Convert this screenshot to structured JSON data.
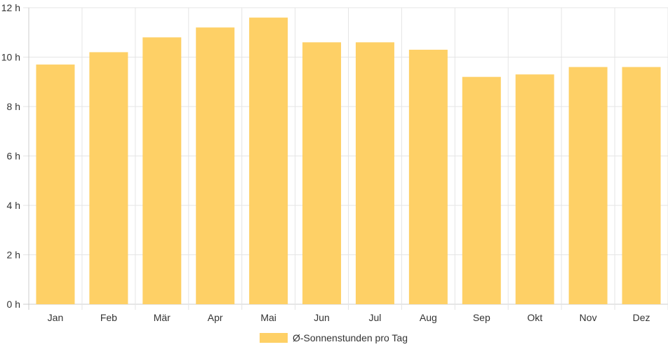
{
  "chart_data": {
    "type": "bar",
    "categories": [
      "Jan",
      "Feb",
      "Mär",
      "Apr",
      "Mai",
      "Jun",
      "Jul",
      "Aug",
      "Sep",
      "Okt",
      "Nov",
      "Dez"
    ],
    "series": [
      {
        "name": "Ø-Sonnenstunden pro Tag",
        "values": [
          9.7,
          10.2,
          10.8,
          11.2,
          11.6,
          10.6,
          10.6,
          10.3,
          9.2,
          9.3,
          9.6,
          9.6
        ],
        "color": "#fed066"
      }
    ],
    "y_ticks": [
      "0 h",
      "2 h",
      "4 h",
      "6 h",
      "8 h",
      "10 h",
      "12 h"
    ],
    "ylim": [
      0,
      12
    ],
    "grid": true,
    "legend_position": "bottom"
  }
}
